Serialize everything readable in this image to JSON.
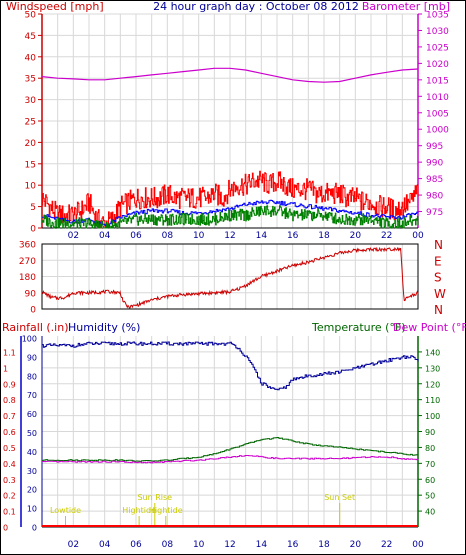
{
  "chart_data": [
    {
      "type": "line",
      "id": "wind-baro",
      "title": "24 hour graph day : October 08 2012",
      "left_axis_label": "Windspeed [mph]",
      "right_axis_label": "Barometer [mb]",
      "left_ylim": [
        0,
        50
      ],
      "left_ticks": [
        0,
        5,
        10,
        15,
        20,
        25,
        30,
        35,
        40,
        45,
        50
      ],
      "right_ylim": [
        970,
        1035
      ],
      "right_ticks": [
        975,
        980,
        985,
        990,
        995,
        1000,
        1005,
        1010,
        1015,
        1020,
        1025,
        1030,
        1035
      ],
      "x_tick_labels": [
        "02",
        "04",
        "06",
        "08",
        "10",
        "12",
        "14",
        "16",
        "18",
        "20",
        "22",
        "00"
      ],
      "grid": true,
      "series": [
        {
          "key": "gust",
          "color": "#ff0000",
          "axis": "left",
          "x": [
            0,
            0.5,
            1,
            1.5,
            2,
            2.5,
            3,
            3.5,
            4,
            4.5,
            5,
            5.5,
            6,
            6.5,
            7,
            7.5,
            8,
            8.5,
            9,
            9.5,
            10,
            10.5,
            11,
            11.5,
            12,
            12.5,
            13,
            13.5,
            14,
            14.5,
            15,
            15.5,
            16,
            16.5,
            17,
            17.5,
            18,
            18.5,
            19,
            19.5,
            20,
            20.5,
            21,
            21.5,
            22,
            22.5,
            23,
            23.5,
            24
          ],
          "y": [
            7,
            5,
            3,
            3,
            3,
            4,
            6,
            2,
            1,
            2,
            5,
            6,
            7,
            7,
            7,
            7,
            8,
            7,
            7,
            7,
            7,
            7,
            8,
            7,
            9,
            10,
            10,
            11,
            11,
            10,
            11,
            10,
            9,
            9,
            9,
            8,
            8,
            8,
            8,
            7,
            7,
            6,
            6,
            5,
            5,
            4,
            5,
            6,
            9
          ]
        },
        {
          "key": "average",
          "color": "#0000ff",
          "axis": "left",
          "x": [
            0,
            1,
            2,
            3,
            4,
            5,
            6,
            7,
            8,
            9,
            10,
            11,
            12,
            13,
            14,
            15,
            16,
            17,
            18,
            19,
            20,
            21,
            22,
            23,
            24
          ],
          "y": [
            3,
            2,
            1.5,
            2,
            0.5,
            2.5,
            3.5,
            4,
            4,
            3.5,
            3.5,
            4,
            4.5,
            5.5,
            6,
            6,
            5.5,
            5,
            4.5,
            4,
            3.5,
            3,
            2.5,
            2.5,
            3.5
          ]
        },
        {
          "key": "windspeed",
          "color": "#008000",
          "axis": "left",
          "x": [
            0,
            1,
            2,
            3,
            4,
            5,
            6,
            7,
            8,
            9,
            10,
            11,
            12,
            13,
            14,
            15,
            16,
            17,
            18,
            19,
            20,
            21,
            22,
            23,
            24
          ],
          "y": [
            2,
            1,
            1,
            1,
            0,
            1,
            2,
            2,
            2,
            2,
            2,
            2,
            3,
            3,
            4,
            4,
            3,
            3,
            3,
            2,
            2,
            2,
            1,
            1,
            2
          ]
        },
        {
          "key": "barometer",
          "color": "#cc00cc",
          "axis": "right",
          "x": [
            0,
            1,
            2,
            3,
            4,
            5,
            6,
            7,
            8,
            9,
            10,
            11,
            12,
            13,
            14,
            15,
            16,
            17,
            18,
            19,
            20,
            21,
            22,
            23,
            24
          ],
          "y": [
            1016,
            1015.5,
            1015.3,
            1015,
            1015,
            1015.5,
            1016,
            1016.5,
            1017,
            1017.5,
            1018,
            1018.5,
            1018.5,
            1018,
            1017,
            1016,
            1015,
            1014.5,
            1014.3,
            1014.5,
            1015.5,
            1016.5,
            1017.3,
            1018,
            1018.3
          ]
        }
      ]
    },
    {
      "type": "line",
      "id": "wind-direction",
      "ylim": [
        0,
        360
      ],
      "y_ticks": [
        0,
        90,
        180,
        270,
        360
      ],
      "right_tick_labels": [
        "N",
        "W",
        "S",
        "E",
        "N"
      ],
      "series": [
        {
          "key": "direction",
          "color": "#cc0000",
          "x": [
            0,
            0.3,
            0.6,
            1,
            1.5,
            2,
            3,
            4,
            4.5,
            5,
            5.2,
            5.5,
            6,
            7,
            8,
            9,
            10,
            11,
            12,
            12.5,
            13,
            14,
            15,
            16,
            17,
            18,
            19,
            20,
            21,
            22,
            22.9,
            23.1,
            23.5,
            24
          ],
          "y": [
            95,
            80,
            65,
            60,
            65,
            90,
            90,
            95,
            95,
            90,
            40,
            10,
            20,
            50,
            70,
            80,
            85,
            90,
            95,
            110,
            130,
            180,
            210,
            240,
            260,
            285,
            310,
            325,
            330,
            330,
            335,
            50,
            70,
            90
          ]
        }
      ]
    },
    {
      "type": "line",
      "id": "rain-humidity-temp",
      "labels": {
        "rainfall": "Rainfall (.in)",
        "humidity": "Humidity (%)",
        "temperature": "Temperature (°F)",
        "dewpoint": "Dew Point (°F)"
      },
      "left_outer_ylim": [
        0,
        1.2
      ],
      "left_outer_ticks": [
        "0",
        "0.1",
        "0.2",
        "0.3",
        "0.4",
        "0.5",
        "0.6",
        "0.7",
        "0.8",
        "0.9",
        "1",
        "1.1"
      ],
      "left_inner_ylim": [
        0,
        100
      ],
      "left_inner_ticks": [
        "0",
        "10",
        "20",
        "30",
        "40",
        "50",
        "60",
        "70",
        "80",
        "90",
        "100"
      ],
      "right_ylim": [
        30,
        150
      ],
      "right_ticks": [
        "40",
        "50",
        "60",
        "70",
        "80",
        "90",
        "100",
        "110",
        "120",
        "130",
        "140"
      ],
      "x_tick_labels": [
        "02",
        "04",
        "06",
        "08",
        "10",
        "12",
        "14",
        "16",
        "18",
        "20",
        "22",
        "00"
      ],
      "events": [
        {
          "label": "Lowtide",
          "time": 1.5,
          "mark": "low"
        },
        {
          "label": "Hightide",
          "time": 6.2,
          "mark": "low"
        },
        {
          "label": "Hightide",
          "time": 7.9,
          "mark": "low"
        },
        {
          "label": "Sun Rise",
          "time": 7.2,
          "mark": "high"
        },
        {
          "label": "Sun Set",
          "time": 19.0,
          "mark": "high"
        }
      ],
      "series": [
        {
          "key": "humidity",
          "color": "#000099",
          "axis": "inner",
          "x": [
            0,
            1,
            2,
            3,
            4,
            5,
            6,
            7,
            8,
            9,
            10,
            11,
            12,
            12.5,
            13,
            13.5,
            14,
            14.5,
            15,
            15.5,
            16,
            16.5,
            17,
            18,
            19,
            20,
            21,
            22,
            23,
            23.5,
            24
          ],
          "y": [
            96,
            96,
            96,
            97,
            97,
            97,
            97,
            97,
            97,
            97,
            97,
            97,
            97,
            95,
            90,
            84,
            76,
            74,
            72,
            74,
            78,
            79,
            80,
            81,
            82,
            84,
            86,
            88,
            90,
            90,
            88
          ]
        },
        {
          "key": "temperature",
          "color": "#006600",
          "axis": "right",
          "x": [
            0,
            1,
            2,
            3,
            4,
            5,
            6,
            7,
            8,
            9,
            10,
            11,
            12,
            13,
            14,
            15,
            16,
            17,
            18,
            19,
            20,
            21,
            22,
            23,
            24
          ],
          "y": [
            72,
            72,
            72,
            72,
            72,
            72,
            71.5,
            71.5,
            72,
            73,
            74,
            76,
            79,
            82,
            85,
            86,
            84,
            82,
            81,
            80,
            79,
            78,
            77,
            76,
            75
          ]
        },
        {
          "key": "dewpoint",
          "color": "#cc00cc",
          "axis": "right",
          "x": [
            0,
            1,
            2,
            3,
            4,
            5,
            6,
            7,
            8,
            9,
            10,
            11,
            12,
            13,
            14,
            15,
            16,
            17,
            18,
            19,
            20,
            21,
            22,
            23,
            24
          ],
          "y": [
            71,
            71,
            71,
            71,
            71,
            71,
            70.5,
            70.5,
            71,
            71.5,
            72,
            73,
            74,
            75,
            74,
            73,
            73,
            73,
            73,
            73,
            73.5,
            74,
            74,
            73,
            72
          ]
        },
        {
          "key": "rainfall",
          "color": "#ff0000",
          "axis": "outer",
          "x": [
            0,
            24
          ],
          "y": [
            0,
            0
          ]
        }
      ]
    }
  ]
}
